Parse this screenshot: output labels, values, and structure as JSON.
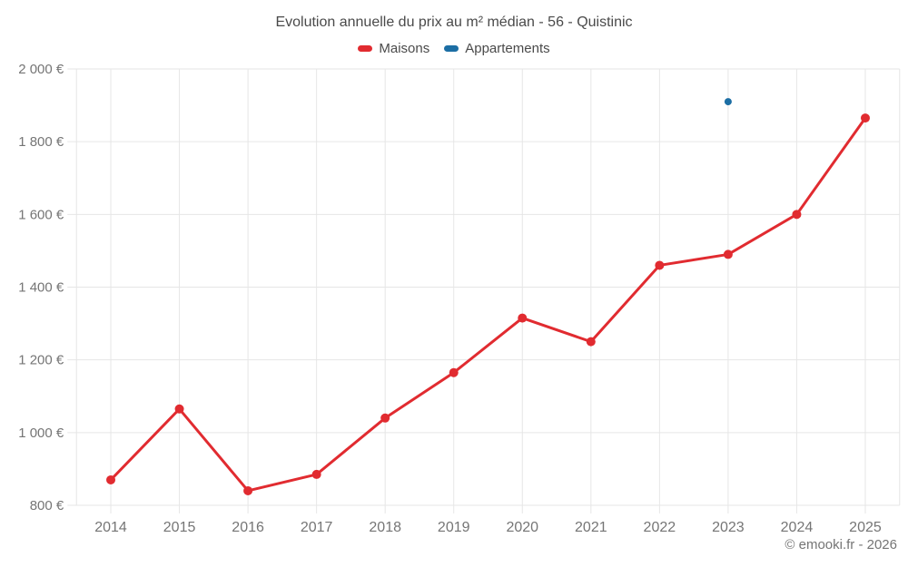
{
  "chart": {
    "title": "Evolution annuelle du prix au m² médian - 56 - Quistinic",
    "legend": [
      {
        "label": "Maisons",
        "color": "#e12b30"
      },
      {
        "label": "Appartements",
        "color": "#1c6ea4"
      }
    ]
  },
  "footer": {
    "copyright": "© emooki.fr - 2026"
  },
  "chart_data": {
    "type": "line",
    "title": "Evolution annuelle du prix au m² médian - 56 - Quistinic",
    "categories": [
      "2014",
      "2015",
      "2016",
      "2017",
      "2018",
      "2019",
      "2020",
      "2021",
      "2022",
      "2023",
      "2024",
      "2025"
    ],
    "series": [
      {
        "name": "Maisons",
        "type": "line",
        "color": "#e12b30",
        "values": [
          870,
          1065,
          840,
          885,
          1040,
          1165,
          1315,
          1250,
          1460,
          1490,
          1600,
          1865
        ]
      },
      {
        "name": "Appartements",
        "type": "scatter",
        "color": "#1c6ea4",
        "values": [
          null,
          null,
          null,
          null,
          null,
          null,
          null,
          null,
          null,
          1910,
          null,
          null
        ]
      }
    ],
    "xlabel": "",
    "ylabel": "",
    "ylim": [
      800,
      2000
    ],
    "y_ticks": [
      800,
      1000,
      1200,
      1400,
      1600,
      1800,
      2000
    ],
    "y_tick_labels": [
      "800 €",
      "1 000 €",
      "1 200 €",
      "1 400 €",
      "1 600 €",
      "1 800 €",
      "2 000 €"
    ],
    "grid": true,
    "legend_position": "top",
    "grid_color": "#e6e6e6",
    "axis_label_color": "#757575"
  }
}
